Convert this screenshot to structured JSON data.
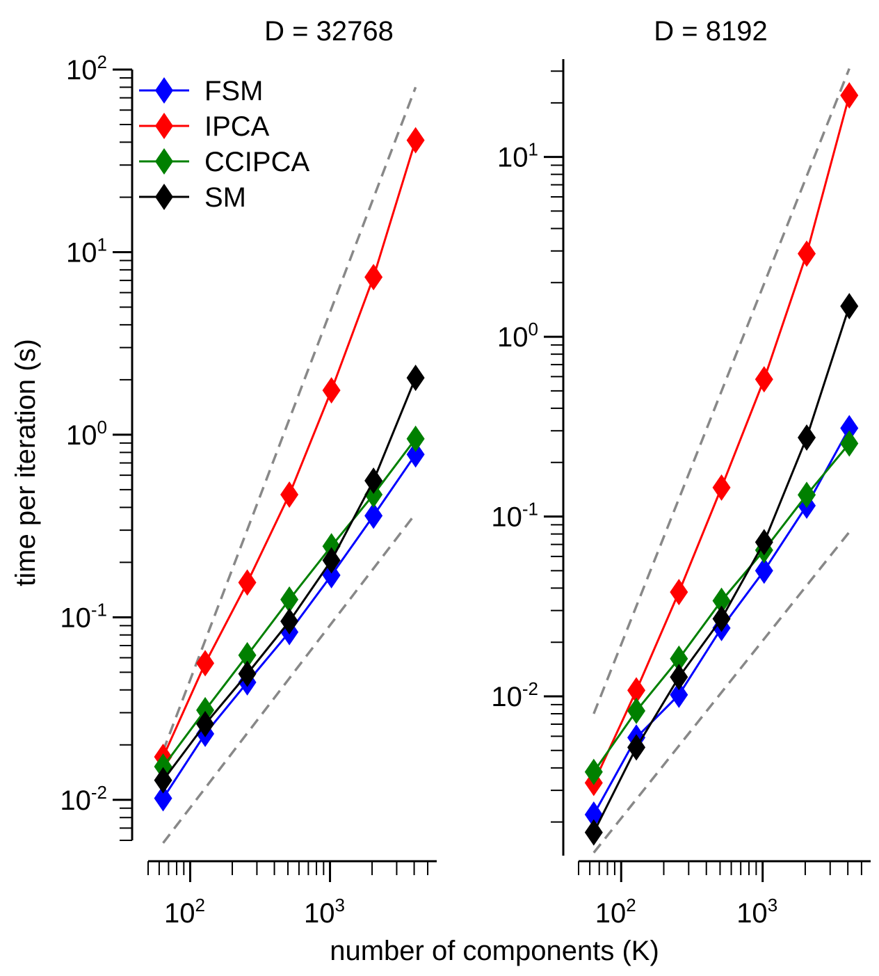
{
  "figure": {
    "xlabel": "number of components (K)",
    "ylabel": "time per iteration (s)"
  },
  "legend": {
    "entries": [
      {
        "name": "FSM",
        "color": "#0000ff"
      },
      {
        "name": "IPCA",
        "color": "#ff0000"
      },
      {
        "name": "CCIPCA",
        "color": "#008000"
      },
      {
        "name": "SM",
        "color": "#000000"
      }
    ]
  },
  "chart_data": [
    {
      "type": "line",
      "title": "D = 32768",
      "xscale": "log",
      "yscale": "log",
      "xlim": [
        50,
        5800
      ],
      "ylim": [
        0.006,
        100
      ],
      "x_ticks": [
        {
          "base": "10",
          "exp": "2"
        },
        {
          "base": "10",
          "exp": "3"
        }
      ],
      "y_ticks": [
        {
          "base": "10",
          "exp": "-2"
        },
        {
          "base": "10",
          "exp": "-1"
        },
        {
          "base": "10",
          "exp": "0"
        },
        {
          "base": "10",
          "exp": "1"
        },
        {
          "base": "10",
          "exp": "2"
        }
      ],
      "x": [
        64,
        128,
        256,
        512,
        1024,
        2048,
        4096
      ],
      "series": [
        {
          "name": "FSM",
          "color": "#0000ff",
          "values": [
            0.0102,
            0.023,
            0.044,
            0.083,
            0.17,
            0.36,
            0.78
          ]
        },
        {
          "name": "IPCA",
          "color": "#ff0000",
          "values": [
            0.0172,
            0.056,
            0.155,
            0.47,
            1.75,
            7.3,
            41.0
          ]
        },
        {
          "name": "CCIPCA",
          "color": "#008000",
          "values": [
            0.0152,
            0.031,
            0.062,
            0.125,
            0.245,
            0.47,
            0.95
          ]
        },
        {
          "name": "SM",
          "color": "#000000",
          "values": [
            0.0128,
            0.026,
            0.049,
            0.095,
            0.205,
            0.56,
            2.05
          ]
        }
      ],
      "guides": [
        {
          "style": "dashed",
          "color": "#888888",
          "x": [
            64,
            4096
          ],
          "y": [
            0.0185,
            80
          ]
        },
        {
          "style": "dashed",
          "color": "#888888",
          "x": [
            64,
            4096
          ],
          "y": [
            0.0058,
            0.37
          ]
        }
      ]
    },
    {
      "type": "line",
      "title": "D = 8192",
      "xscale": "log",
      "yscale": "log",
      "xlim": [
        50,
        5800
      ],
      "ylim": [
        0.0013,
        35
      ],
      "x_ticks": [
        {
          "base": "10",
          "exp": "2"
        },
        {
          "base": "10",
          "exp": "3"
        }
      ],
      "y_ticks": [
        {
          "base": "10",
          "exp": "-2"
        },
        {
          "base": "10",
          "exp": "-1"
        },
        {
          "base": "10",
          "exp": "0"
        },
        {
          "base": "10",
          "exp": "1"
        }
      ],
      "x": [
        64,
        128,
        256,
        512,
        1024,
        2048,
        4096
      ],
      "series": [
        {
          "name": "FSM",
          "color": "#0000ff",
          "values": [
            0.0022,
            0.0059,
            0.0102,
            0.024,
            0.05,
            0.115,
            0.31
          ]
        },
        {
          "name": "IPCA",
          "color": "#ff0000",
          "values": [
            0.0033,
            0.0108,
            0.038,
            0.145,
            0.58,
            2.9,
            22.0
          ]
        },
        {
          "name": "CCIPCA",
          "color": "#008000",
          "values": [
            0.0038,
            0.0083,
            0.0162,
            0.034,
            0.065,
            0.132,
            0.255
          ]
        },
        {
          "name": "SM",
          "color": "#000000",
          "values": [
            0.00175,
            0.0052,
            0.0128,
            0.027,
            0.072,
            0.275,
            1.48
          ]
        }
      ],
      "guides": [
        {
          "style": "dashed",
          "color": "#888888",
          "x": [
            64,
            4096
          ],
          "y": [
            0.008,
            31
          ]
        },
        {
          "style": "dashed",
          "color": "#888888",
          "x": [
            64,
            4096
          ],
          "y": [
            0.00135,
            0.082
          ]
        }
      ]
    }
  ]
}
